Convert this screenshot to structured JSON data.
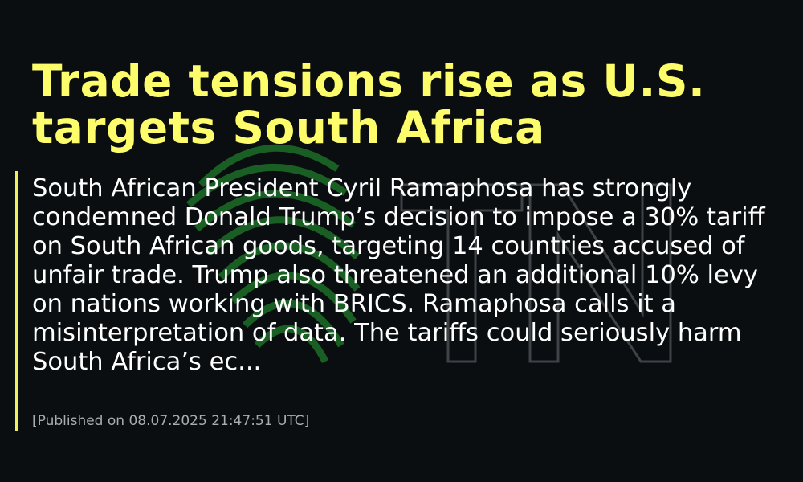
{
  "headline": "Trade tensions rise as U.S. targets South Africa",
  "summary": "South African President Cyril Ramaphosa has strongly condemned Donald Trump’s decision to impose a 30% tariff on South African goods, targeting 14 countries accused of unfair trade. Trump also threatened an additional 10% levy on nations working with BRICS. Ramaphosa calls it a misinterpretation of data. The tariffs could seriously harm South Africa’s ec...",
  "published": "[Published on 08.07.2025 21:47:51 UTC]"
}
